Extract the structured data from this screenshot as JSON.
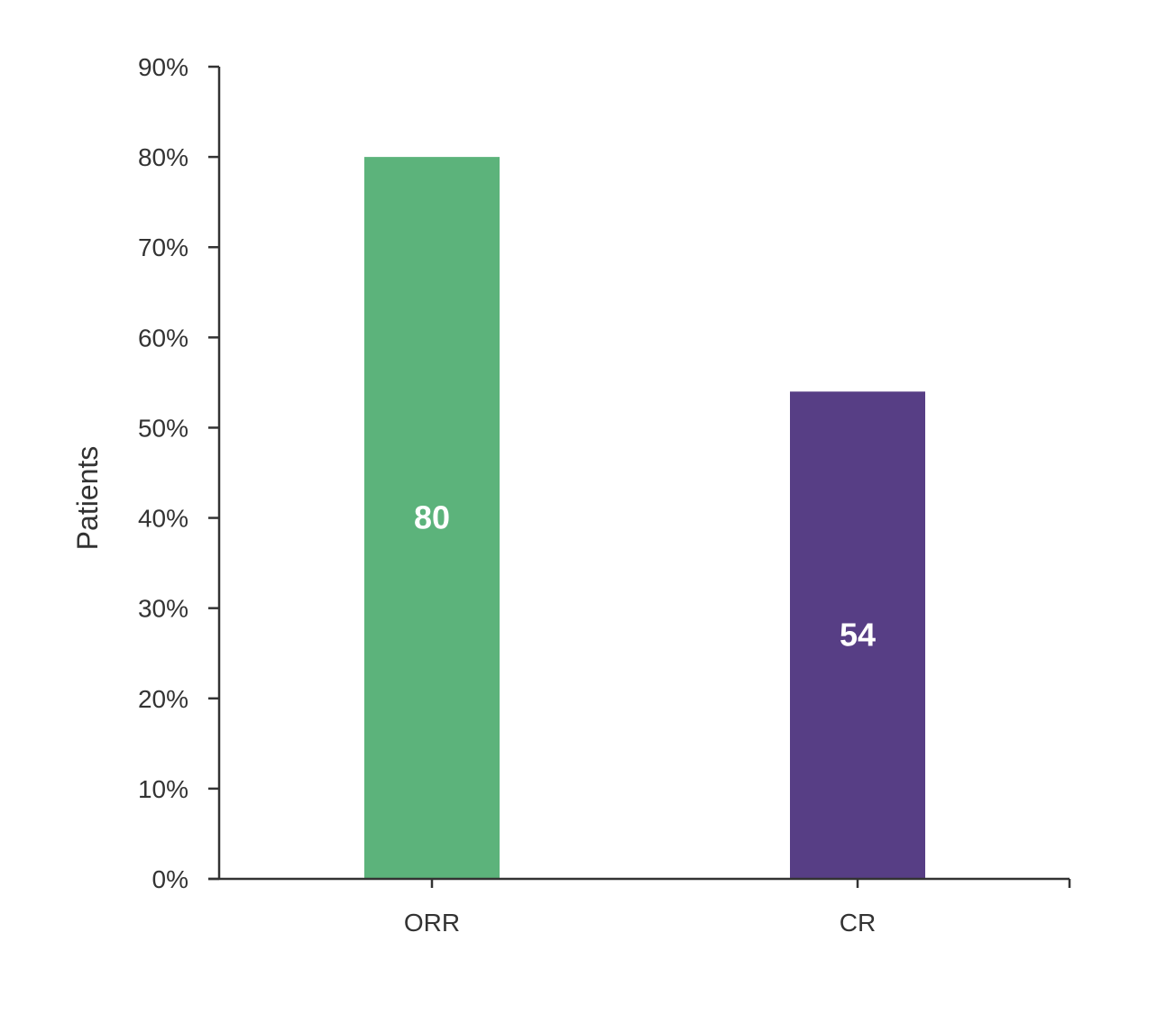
{
  "chart_data": {
    "type": "bar",
    "title": "",
    "xlabel": "",
    "ylabel": "Patients",
    "ylim": [
      0,
      90
    ],
    "ytick_step": 10,
    "ytick_suffix": "%",
    "grid": false,
    "legend": "none",
    "categories": [
      "ORR",
      "CR"
    ],
    "values": [
      80,
      54
    ],
    "data_labels": [
      "80",
      "54"
    ],
    "colors": [
      "#5cb37b",
      "#573e85"
    ],
    "axis_color": "#333333"
  }
}
